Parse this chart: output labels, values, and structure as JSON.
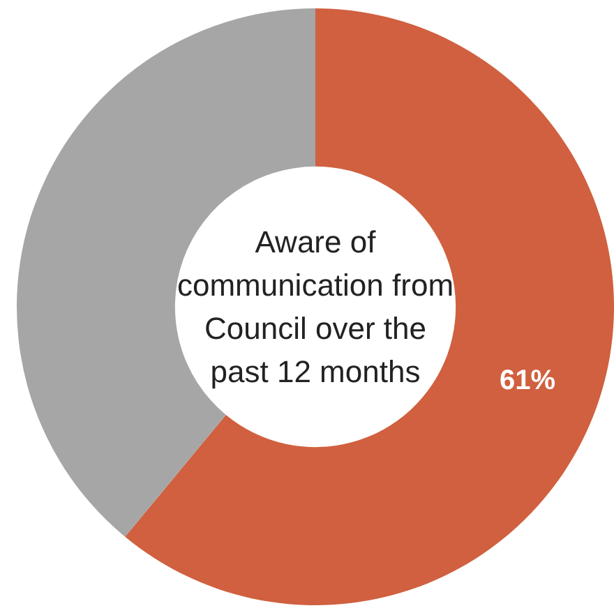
{
  "chart_data": {
    "type": "donut",
    "title": "Aware of communication from Council over the past 12 months",
    "categories": [
      null,
      null
    ],
    "values": [
      61,
      39
    ],
    "colors": [
      "#d0603f",
      "#a6a6a6"
    ],
    "value_labels": [
      "61%",
      null
    ],
    "legend": false
  }
}
